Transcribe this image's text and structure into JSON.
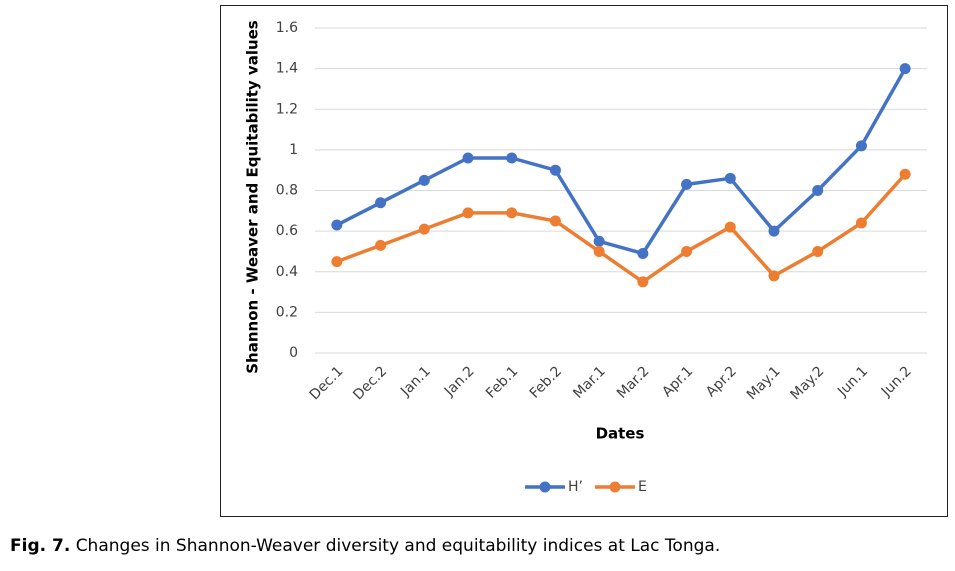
{
  "chart_data": {
    "type": "line",
    "x_label": "Dates",
    "y_label": "Shannon - Weaver and Equitability values",
    "categories": [
      "Dec.1",
      "Dec.2",
      "Jan.1",
      "Jan.2",
      "Feb.1",
      "Feb.2",
      "Mar.1",
      "Mar.2",
      "Apr.1",
      "Apr.2",
      "May.1",
      "May.2",
      "Jun.1",
      "Jun.2"
    ],
    "series": [
      {
        "name": "H’",
        "color": "#4472c4",
        "values": [
          0.63,
          0.74,
          0.85,
          0.96,
          0.96,
          0.9,
          0.55,
          0.49,
          0.83,
          0.86,
          0.6,
          0.8,
          1.02,
          1.4
        ]
      },
      {
        "name": "E",
        "color": "#ed7d31",
        "values": [
          0.45,
          0.53,
          0.61,
          0.69,
          0.69,
          0.65,
          0.5,
          0.35,
          0.5,
          0.62,
          0.38,
          0.5,
          0.64,
          0.88
        ]
      }
    ],
    "ylim": [
      0,
      1.6
    ],
    "yticks": [
      0,
      0.2,
      0.4,
      0.6,
      0.8,
      1,
      1.2,
      1.4,
      1.6
    ],
    "grid": true,
    "legend": "bottom",
    "caption_label": "Fig. 7.",
    "caption": "Changes in Shannon-Weaver diversity and equitability indices at Lac Tonga."
  }
}
